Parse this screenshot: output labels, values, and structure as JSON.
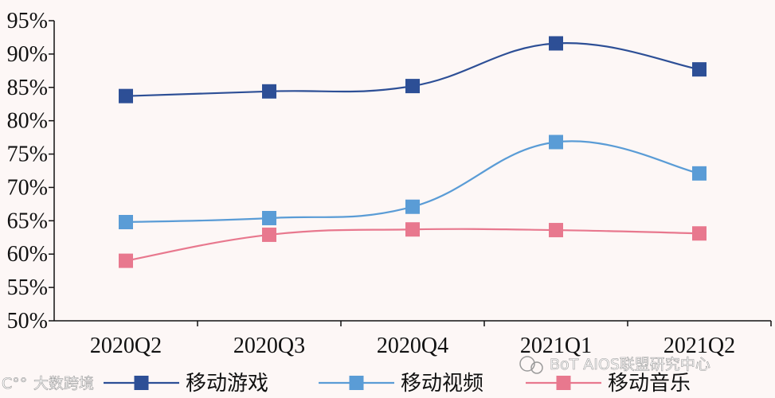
{
  "watermarks": {
    "left": "大数跨境",
    "right": "BoT AIOS联盟研究中心"
  },
  "chart_data": {
    "type": "line",
    "categories": [
      "2020Q2",
      "2020Q3",
      "2020Q4",
      "2021Q1",
      "2021Q2"
    ],
    "ylim": [
      50,
      95
    ],
    "yticks": [
      "50%",
      "55%",
      "60%",
      "65%",
      "70%",
      "75%",
      "80%",
      "85%",
      "90%",
      "95%"
    ],
    "grid": false,
    "legend_position": "bottom",
    "series": [
      {
        "name": "移动游戏",
        "color": "#2d4f96",
        "values": [
          83.7,
          84.4,
          85.2,
          91.6,
          87.7
        ]
      },
      {
        "name": "移动视频",
        "color": "#5a9cd6",
        "values": [
          64.8,
          65.4,
          67.1,
          76.8,
          72.1
        ]
      },
      {
        "name": "移动音乐",
        "color": "#e8788e",
        "values": [
          59.0,
          62.9,
          63.7,
          63.6,
          63.1
        ]
      }
    ]
  }
}
